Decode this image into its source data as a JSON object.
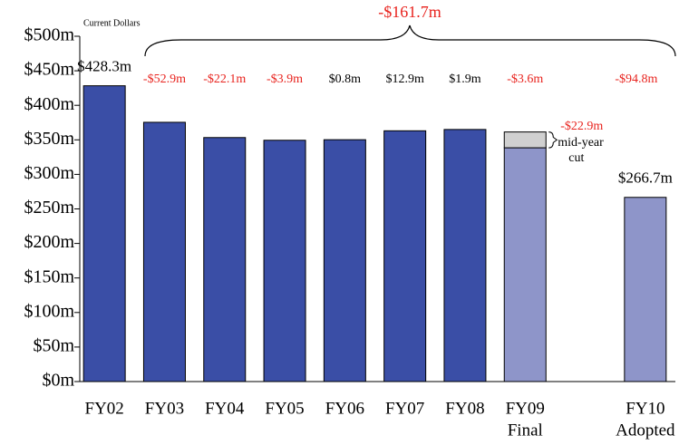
{
  "chart_data": {
    "type": "bar",
    "subtitle": "Current Dollars",
    "total_label": "-$161.7m",
    "categories": [
      "FY02",
      "FY03",
      "FY04",
      "FY05",
      "FY06",
      "FY07",
      "FY08",
      "FY09",
      null,
      "FY10"
    ],
    "category_sublabels": [
      null,
      null,
      null,
      null,
      null,
      null,
      null,
      "Final",
      null,
      "Adopted"
    ],
    "values": [
      428.3,
      375.4,
      353.3,
      349.4,
      350.2,
      363.1,
      365.0,
      338.5,
      null,
      266.7
    ],
    "value_labels": [
      "$428.3m",
      null,
      null,
      null,
      null,
      null,
      null,
      null,
      null,
      "$266.7m"
    ],
    "bar_colors": [
      "#3a4ea6",
      "#3a4ea6",
      "#3a4ea6",
      "#3a4ea6",
      "#3a4ea6",
      "#3a4ea6",
      "#3a4ea6",
      "#8e95c9",
      null,
      "#8e95c9"
    ],
    "cut_values": [
      null,
      null,
      null,
      null,
      null,
      null,
      null,
      22.9,
      null,
      null
    ],
    "cut_color": "#d0d0d0",
    "cut_label": "-$22.9m",
    "cut_note": [
      "mid-year",
      "cut"
    ],
    "change_labels": [
      null,
      "-$52.9m",
      "-$22.1m",
      "-$3.9m",
      "$0.8m",
      "$12.9m",
      "$1.9m",
      "-$3.6m",
      null,
      "-$94.8m"
    ],
    "change_colors": [
      null,
      "#e8231e",
      "#e8231e",
      "#e8231e",
      "#000000",
      "#000000",
      "#000000",
      "#e8231e",
      null,
      "#e8231e"
    ],
    "ylim": [
      0,
      500
    ],
    "yticks": [
      {
        "value": 0,
        "label": "$0m"
      },
      {
        "value": 50,
        "label": "$50m"
      },
      {
        "value": 100,
        "label": "$100m"
      },
      {
        "value": 150,
        "label": "$150m"
      },
      {
        "value": 200,
        "label": "$200m"
      },
      {
        "value": 250,
        "label": "$250m"
      },
      {
        "value": 300,
        "label": "$300m"
      },
      {
        "value": 350,
        "label": "$350m"
      },
      {
        "value": 400,
        "label": "$400m"
      },
      {
        "value": 450,
        "label": "$450m"
      },
      {
        "value": 500,
        "label": "$500m"
      }
    ]
  }
}
